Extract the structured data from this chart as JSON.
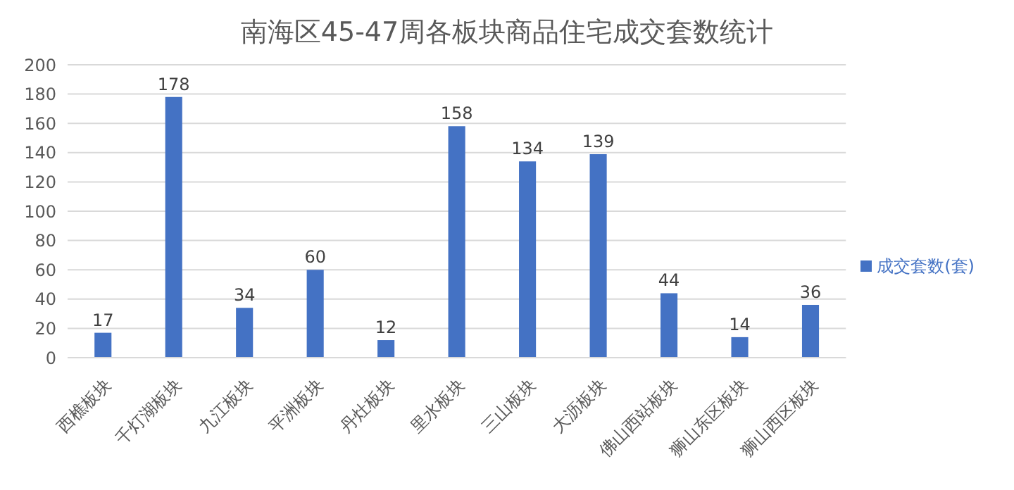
{
  "chart_data": {
    "type": "bar",
    "title": "南海区45-47周各板块商品住宅成交套数统计",
    "categories": [
      "西樵板块",
      "千灯湖板块",
      "九江板块",
      "平洲板块",
      "丹灶板块",
      "里水板块",
      "三山板块",
      "大沥板块",
      "佛山西站板块",
      "狮山东区板块",
      "狮山西区板块"
    ],
    "series": [
      {
        "name": "成交套数(套)",
        "color": "#4472c4",
        "values": [
          17,
          178,
          34,
          60,
          12,
          158,
          134,
          139,
          44,
          14,
          36
        ]
      }
    ],
    "ylim": [
      0,
      200
    ],
    "yticks": [
      0,
      20,
      40,
      60,
      80,
      100,
      120,
      140,
      160,
      180,
      200
    ],
    "grid": "y",
    "legend": "right",
    "data_labels": true
  }
}
